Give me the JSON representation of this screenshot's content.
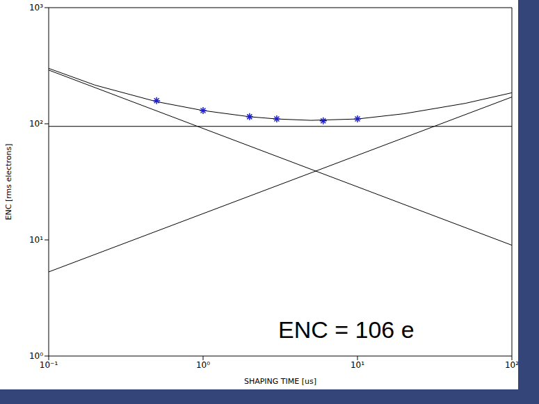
{
  "chart_data": {
    "type": "line",
    "log": true,
    "grid": false,
    "xlabel": "SHAPING TIME [us]",
    "ylabel": "ENC [rms electrons]",
    "annotations": [
      "ENC = 106 e"
    ],
    "xlim": [
      0.1,
      100
    ],
    "ylim": [
      1,
      1000
    ],
    "xticks": [
      {
        "value": 0.1,
        "label": "10⁻¹"
      },
      {
        "value": 1,
        "label": "10⁰"
      },
      {
        "value": 10,
        "label": "10¹"
      },
      {
        "value": 100,
        "label": "10²"
      }
    ],
    "yticks": [
      {
        "value": 1,
        "label": "10⁰"
      },
      {
        "value": 10,
        "label": "10¹"
      },
      {
        "value": 100,
        "label": "10²"
      },
      {
        "value": 1000,
        "label": "10³"
      }
    ],
    "series": [
      {
        "type": "line",
        "color": "#000000",
        "x": [
          0.1,
          0.2,
          0.5,
          1,
          2,
          3,
          5,
          10,
          20,
          50,
          100
        ],
        "values": [
          300,
          215,
          155,
          130,
          115,
          110,
          107,
          110,
          122,
          150,
          185
        ]
      },
      {
        "type": "line",
        "color": "#000000",
        "x": [
          0.1,
          100
        ],
        "values": [
          95,
          95
        ]
      },
      {
        "type": "line",
        "color": "#000000",
        "x": [
          0.1,
          100
        ],
        "values": [
          290,
          9
        ]
      },
      {
        "type": "line",
        "color": "#000000",
        "x": [
          0.1,
          100
        ],
        "values": [
          5.3,
          170
        ]
      },
      {
        "type": "scatter",
        "marker": "asterisk",
        "color": "#1a1acc",
        "x": [
          0.5,
          1,
          2,
          3,
          6,
          10
        ],
        "values": [
          158,
          130,
          115,
          110,
          106,
          110
        ]
      }
    ]
  }
}
